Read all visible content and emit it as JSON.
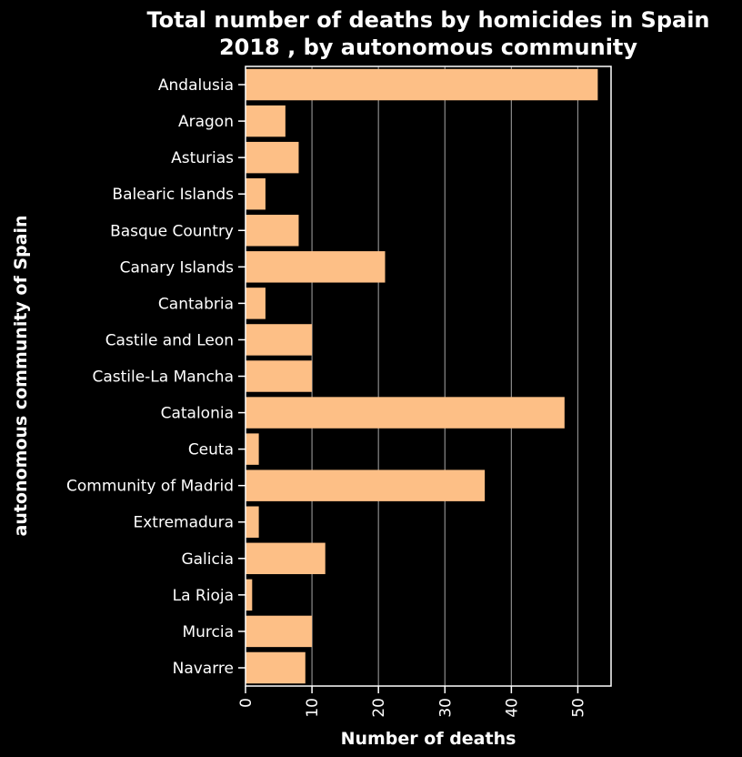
{
  "chart_data": {
    "type": "bar",
    "orientation": "horizontal",
    "title": [
      "Total number of deaths by homicides in Spain",
      "2018 , by autonomous community"
    ],
    "xlabel": "Number of deaths",
    "ylabel": "autonomous community of Spain",
    "xlim": [
      0,
      55
    ],
    "xticks": [
      0,
      10,
      20,
      30,
      40,
      50
    ],
    "grid": true,
    "categories": [
      "Andalusia",
      "Aragon",
      "Asturias",
      "Balearic Islands",
      "Basque Country",
      "Canary Islands",
      "Cantabria",
      "Castile and Leon",
      "Castile-La Mancha",
      "Catalonia",
      "Ceuta",
      "Community of Madrid",
      "Extremadura",
      "Galicia",
      "La Rioja",
      "Murcia",
      "Navarre"
    ],
    "values": [
      53,
      6,
      8,
      3,
      8,
      21,
      3,
      10,
      10,
      48,
      2,
      36,
      2,
      12,
      1,
      10,
      9
    ],
    "colors": {
      "bar": "#fdbf86",
      "background": "#000000",
      "grid": "#8c8c8c",
      "axis": "#ffffff",
      "text": "#ffffff"
    }
  }
}
